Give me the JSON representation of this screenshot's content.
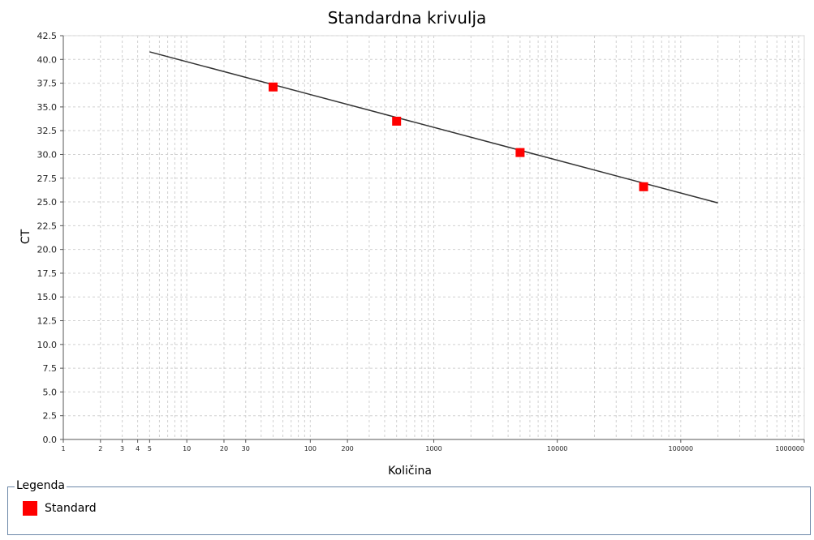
{
  "chart_data": {
    "type": "scatter",
    "title": "Standardna krivulja",
    "xlabel": "Količina",
    "ylabel": "CT",
    "x_scale": "log",
    "xlim": [
      1,
      1000000
    ],
    "ylim": [
      0,
      42.5
    ],
    "grid": true,
    "y_ticks": [
      "0.0",
      "2.5",
      "5.0",
      "7.5",
      "10.0",
      "12.5",
      "15.0",
      "17.5",
      "20.0",
      "22.5",
      "25.0",
      "27.5",
      "30.0",
      "32.5",
      "35.0",
      "37.5",
      "40.0",
      "42.5"
    ],
    "x_ticks": [
      {
        "value": 1,
        "label": "1"
      },
      {
        "value": 2,
        "label": "2"
      },
      {
        "value": 3,
        "label": "3"
      },
      {
        "value": 4,
        "label": "4"
      },
      {
        "value": 5,
        "label": "5"
      },
      {
        "value": 10,
        "label": "10"
      },
      {
        "value": 20,
        "label": "20"
      },
      {
        "value": 30,
        "label": "30"
      },
      {
        "value": 100,
        "label": "100"
      },
      {
        "value": 200,
        "label": "200"
      },
      {
        "value": 1000,
        "label": "1000"
      },
      {
        "value": 10000,
        "label": "10000"
      },
      {
        "value": 100000,
        "label": "100000"
      },
      {
        "value": 1000000,
        "label": "1000000"
      }
    ],
    "series": [
      {
        "name": "Standard",
        "color": "#ff0000",
        "marker": "square",
        "points": [
          {
            "x": 50,
            "y": 37.1
          },
          {
            "x": 500,
            "y": 33.5
          },
          {
            "x": 5000,
            "y": 30.2
          },
          {
            "x": 50000,
            "y": 26.6
          }
        ]
      }
    ],
    "fit_line": {
      "color": "#333333",
      "points": [
        {
          "x": 5,
          "y": 40.8
        },
        {
          "x": 200000,
          "y": 24.9
        }
      ]
    },
    "legend": {
      "title": "Legenda",
      "placement": "bottom",
      "items": [
        {
          "label": "Standard",
          "color": "#ff0000"
        }
      ]
    }
  }
}
